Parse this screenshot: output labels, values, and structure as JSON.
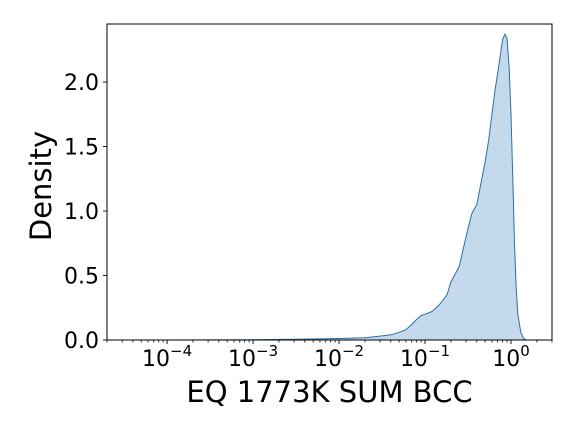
{
  "chart_data": {
    "type": "area",
    "title": "",
    "xlabel": "EQ 1773K SUM BCC",
    "ylabel": "Density",
    "x_scale": "log",
    "xlim": [
      2e-05,
      3.0
    ],
    "ylim": [
      0.0,
      2.45
    ],
    "grid": false,
    "legend": "none",
    "fill_color": "#c5d9ec",
    "line_color": "#2c6fa8",
    "x_ticks": [
      {
        "value": 0.0001,
        "base": "10",
        "exp": "−4"
      },
      {
        "value": 0.001,
        "base": "10",
        "exp": "−3"
      },
      {
        "value": 0.01,
        "base": "10",
        "exp": "−2"
      },
      {
        "value": 0.1,
        "base": "10",
        "exp": "−1"
      },
      {
        "value": 1.0,
        "base": "10",
        "exp": "0"
      }
    ],
    "y_ticks": [
      {
        "value": 0.0,
        "label": "0.0"
      },
      {
        "value": 0.5,
        "label": "0.5"
      },
      {
        "value": 1.0,
        "label": "1.0"
      },
      {
        "value": 1.5,
        "label": "1.5"
      },
      {
        "value": 2.0,
        "label": "2.0"
      }
    ],
    "series": [
      {
        "x": [
          3.5e-05,
          0.0001,
          0.001,
          0.005,
          0.01,
          0.02,
          0.03,
          0.04,
          0.05,
          0.06,
          0.07,
          0.08,
          0.09,
          0.1,
          0.11,
          0.12,
          0.13,
          0.15,
          0.18,
          0.2,
          0.22,
          0.25,
          0.3,
          0.35,
          0.4,
          0.5,
          0.55,
          0.6,
          0.65,
          0.7,
          0.75,
          0.8,
          0.85,
          0.9,
          0.95,
          1.0,
          1.05,
          1.1,
          1.15,
          1.2,
          1.3,
          1.4,
          1.5
        ],
        "y": [
          0.0,
          0.0,
          0.002,
          0.008,
          0.012,
          0.018,
          0.03,
          0.04,
          0.06,
          0.08,
          0.12,
          0.16,
          0.19,
          0.2,
          0.21,
          0.22,
          0.24,
          0.28,
          0.35,
          0.45,
          0.5,
          0.57,
          0.8,
          0.98,
          1.05,
          1.38,
          1.55,
          1.75,
          1.93,
          2.07,
          2.2,
          2.33,
          2.37,
          2.34,
          2.12,
          1.75,
          1.25,
          0.75,
          0.4,
          0.2,
          0.06,
          0.015,
          0.0
        ]
      }
    ]
  }
}
